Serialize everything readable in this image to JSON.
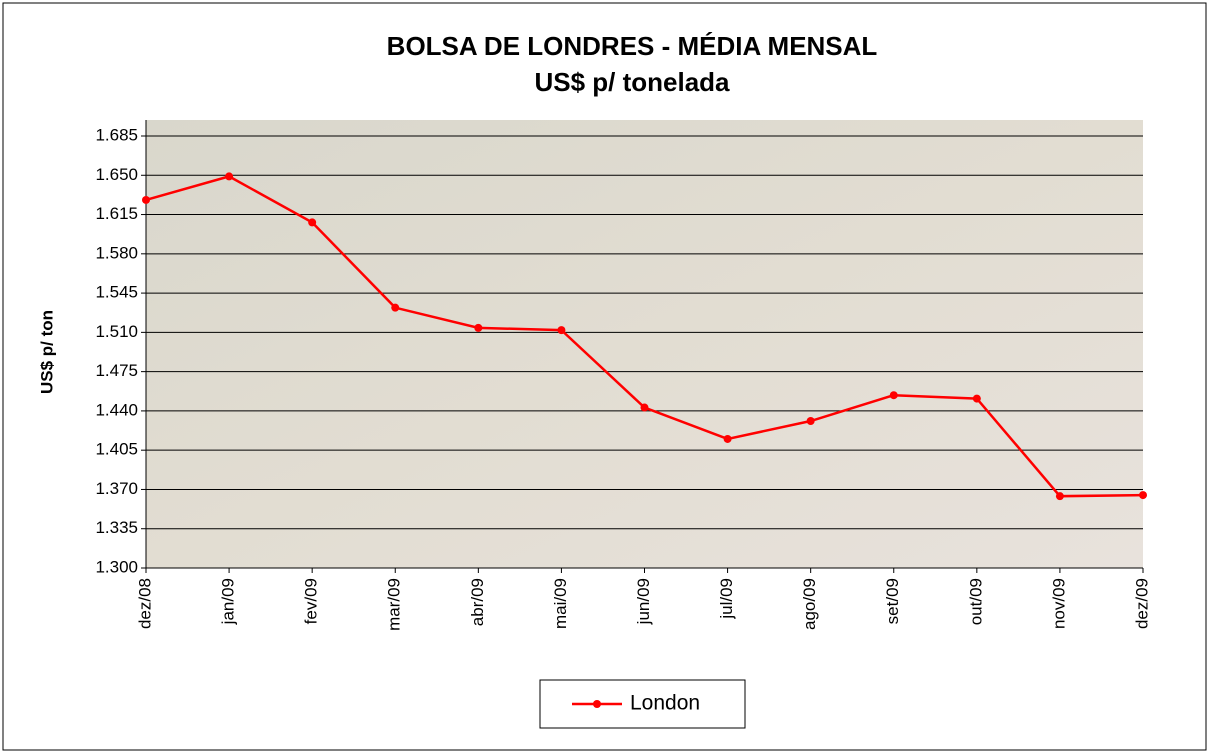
{
  "chart_data": {
    "type": "line",
    "title": "BOLSA DE LONDRES -  MÉDIA MENSAL",
    "subtitle": "US$ p/ tonelada",
    "y_label": "US$ p/ ton",
    "categories": [
      "dez/08",
      "jan/09",
      "fev/09",
      "mar/09",
      "abr/09",
      "mai/09",
      "jun/09",
      "jul/09",
      "ago/09",
      "set/09",
      "out/09",
      "nov/09",
      "dez/09"
    ],
    "series": [
      {
        "name": "London",
        "color": "#ff0000",
        "values": [
          1628,
          1649,
          1608,
          1532,
          1514,
          1512,
          1443,
          1415,
          1431,
          1454,
          1451,
          1364,
          1365
        ]
      }
    ],
    "ylim": [
      1300,
      1685
    ],
    "yticks": [
      {
        "value": 1300,
        "label": "1.300"
      },
      {
        "value": 1335,
        "label": "1.335"
      },
      {
        "value": 1370,
        "label": "1.370"
      },
      {
        "value": 1405,
        "label": "1.405"
      },
      {
        "value": 1440,
        "label": "1.440"
      },
      {
        "value": 1475,
        "label": "1.475"
      },
      {
        "value": 1510,
        "label": "1.510"
      },
      {
        "value": 1545,
        "label": "1.545"
      },
      {
        "value": 1580,
        "label": "1.580"
      },
      {
        "value": 1615,
        "label": "1.615"
      },
      {
        "value": 1650,
        "label": "1.650"
      },
      {
        "value": 1685,
        "label": "1.685"
      }
    ],
    "grid": true,
    "legend": "bottom"
  }
}
